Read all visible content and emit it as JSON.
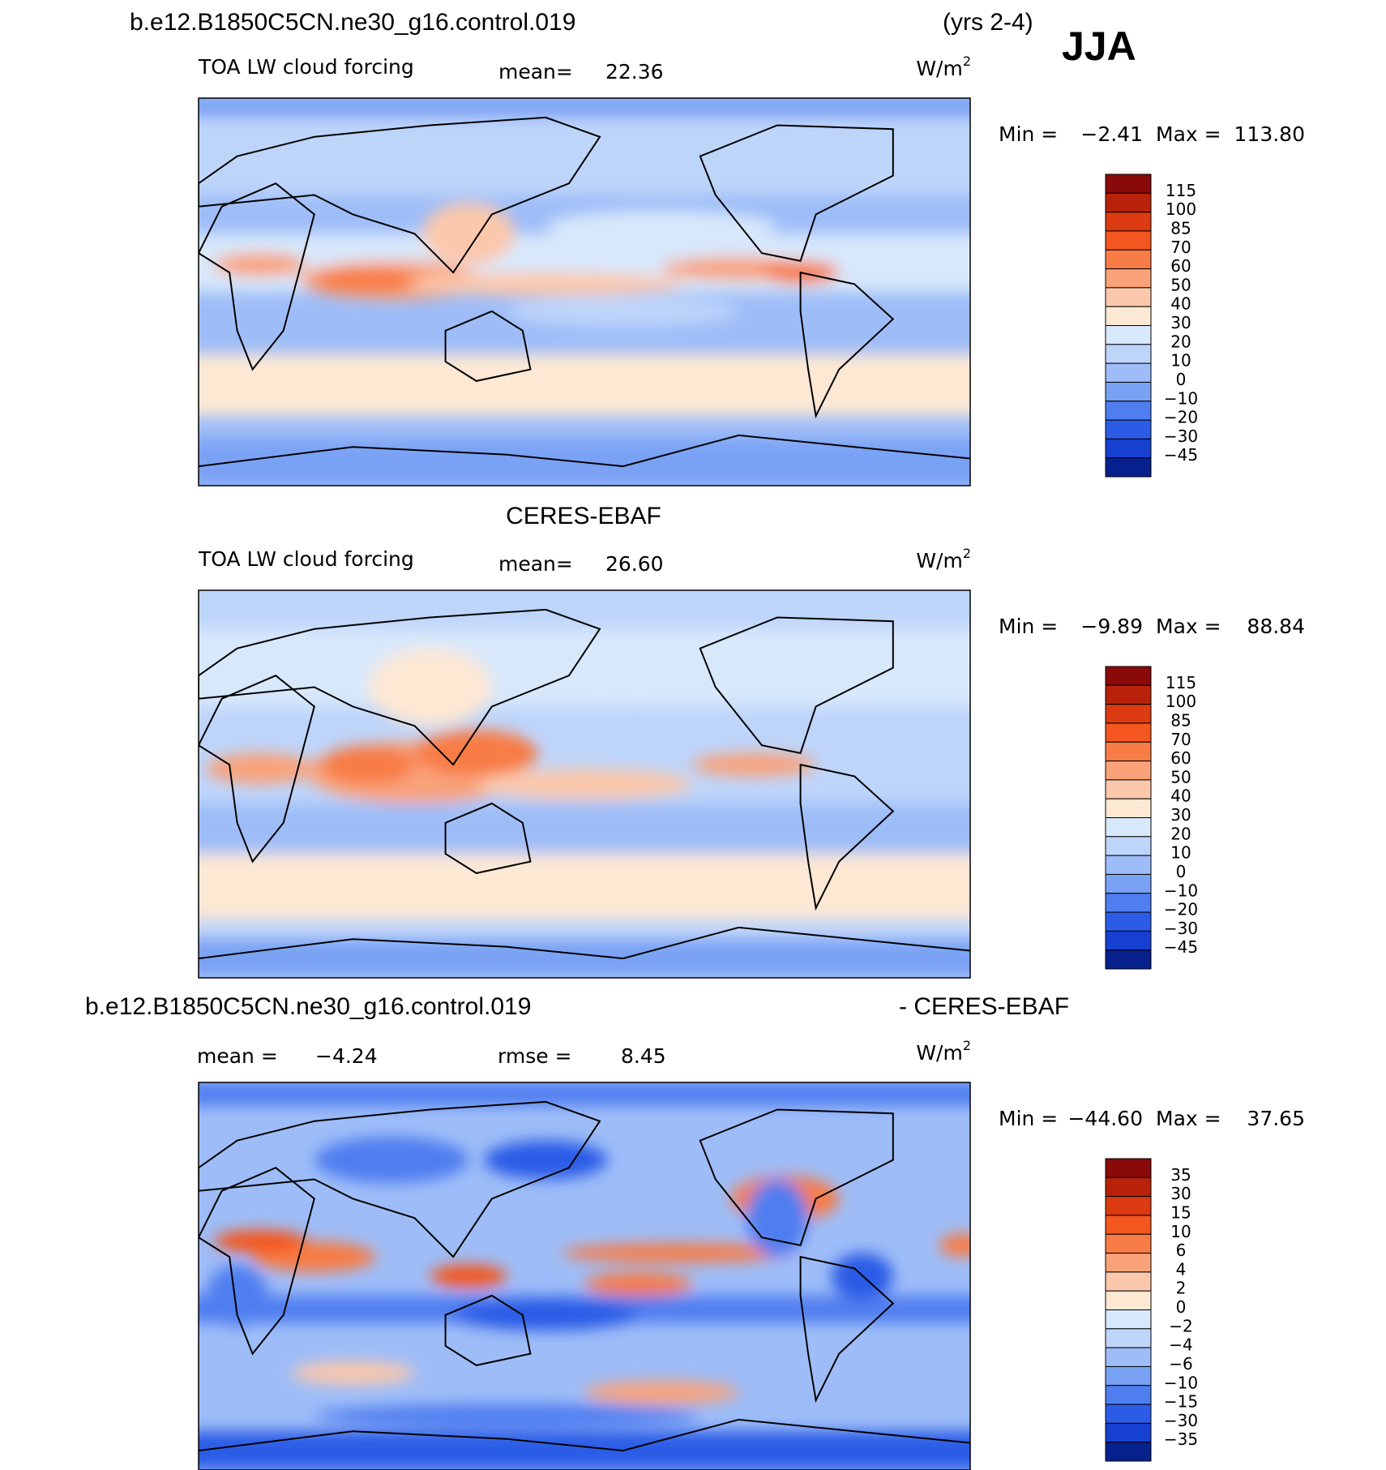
{
  "header": {
    "case": "b.e12.B1850C5CN.ne30_g16.control.019",
    "years": "(yrs 2-4)",
    "season": "JJA"
  },
  "panels": [
    {
      "variable": "TOA LW cloud forcing",
      "stats": [
        {
          "label": "mean=",
          "value": "22.36"
        }
      ],
      "units": {
        "base": "W/m",
        "exp": "2"
      },
      "min_label": "Min =",
      "min": "−2.41",
      "max_label": "Max =",
      "max": "113.80",
      "colorbar": {
        "labels": [
          "115",
          "100",
          "85",
          "70",
          "60",
          "50",
          "40",
          "30",
          "20",
          "10",
          "0",
          "−10",
          "−20",
          "−30",
          "−45"
        ],
        "colors": [
          "#8a0a0a",
          "#b8220a",
          "#dc3a10",
          "#f4571f",
          "#f87c45",
          "#f9a27a",
          "#fcc8ac",
          "#fde8d4",
          "#d8e8fb",
          "#bed5fa",
          "#9ebdf8",
          "#7aa2f4",
          "#4f7ef0",
          "#2c5ce6",
          "#1640d0",
          "#06208e"
        ]
      }
    },
    {
      "title": "CERES-EBAF",
      "variable": "TOA LW cloud forcing",
      "stats": [
        {
          "label": "mean=",
          "value": "26.60"
        }
      ],
      "units": {
        "base": "W/m",
        "exp": "2"
      },
      "min_label": "Min =",
      "min": "−9.89",
      "max_label": "Max =",
      "max": "88.84",
      "colorbar": {
        "labels": [
          "115",
          "100",
          "85",
          "70",
          "60",
          "50",
          "40",
          "30",
          "20",
          "10",
          "0",
          "−10",
          "−20",
          "−30",
          "−45"
        ],
        "colors": [
          "#8a0a0a",
          "#b8220a",
          "#dc3a10",
          "#f4571f",
          "#f87c45",
          "#f9a27a",
          "#fcc8ac",
          "#fde8d4",
          "#d8e8fb",
          "#bed5fa",
          "#9ebdf8",
          "#7aa2f4",
          "#4f7ef0",
          "#2c5ce6",
          "#1640d0",
          "#06208e"
        ]
      }
    },
    {
      "title_left": "b.e12.B1850C5CN.ne30_g16.control.019",
      "title_right": "- CERES-EBAF",
      "stats": [
        {
          "label": "mean =",
          "value": "−4.24"
        },
        {
          "label": "rmse =",
          "value": "8.45"
        }
      ],
      "units": {
        "base": "W/m",
        "exp": "2"
      },
      "min_label": "Min =",
      "min": "−44.60",
      "max_label": "Max =",
      "max": "37.65",
      "colorbar": {
        "labels": [
          "35",
          "30",
          "15",
          "10",
          "6",
          "4",
          "2",
          "0",
          "−2",
          "−4",
          "−6",
          "−10",
          "−15",
          "−30",
          "−35"
        ],
        "colors": [
          "#8a0a0a",
          "#b8220a",
          "#dc3a10",
          "#f4571f",
          "#f87c45",
          "#f9a27a",
          "#fcc8ac",
          "#fde8d4",
          "#d8e8fb",
          "#bed5fa",
          "#9ebdf8",
          "#7aa2f4",
          "#4f7ef0",
          "#2c5ce6",
          "#1640d0",
          "#06208e"
        ]
      }
    }
  ]
}
